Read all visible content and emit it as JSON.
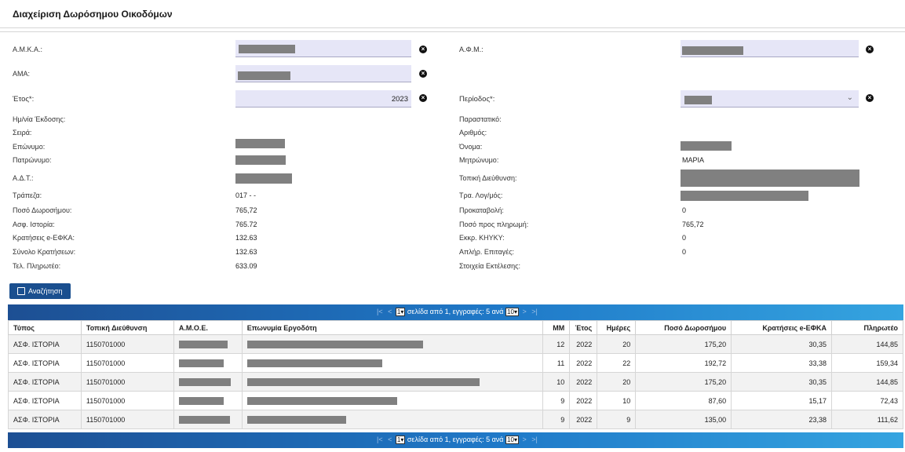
{
  "app": {
    "title": "Διαχείριση Δωρόσημου Οικοδόμων"
  },
  "form": {
    "amka_label": "Α.Μ.Κ.Α.:",
    "afm_label": "Α.Φ.Μ.:",
    "ama_label": "ΑΜΑ:",
    "year_label": "Έτος*:",
    "year_value": "2023",
    "period_label": "Περίοδος*:",
    "clear_icon": "clear-icon",
    "left": [
      {
        "label": "Ημ/νία Έκδοσης:",
        "value": ""
      },
      {
        "label": "Σειρά:",
        "value": ""
      },
      {
        "label": "Επώνυμο:",
        "value": ""
      },
      {
        "label": "Πατρώνυμο:",
        "value": ""
      },
      {
        "label": "Α.Δ.Τ.:",
        "value": ""
      },
      {
        "label": "Τράπεζα:",
        "value": "017 - -"
      },
      {
        "label": "Ποσό Δωροσήμου:",
        "value": "765,72"
      },
      {
        "label": "Ασφ. Ιστορία:",
        "value": "765.72"
      },
      {
        "label": "Κρατήσεις e-ΕΦΚΑ:",
        "value": "132.63"
      },
      {
        "label": "Σύνολο Κρατήσεων:",
        "value": "132.63"
      },
      {
        "label": "Τελ. Πληρωτέο:",
        "value": "633.09"
      }
    ],
    "right": [
      {
        "label": "Παραστατικό:",
        "value": ""
      },
      {
        "label": "Αριθμός:",
        "value": ""
      },
      {
        "label": "Όνομα:",
        "value": ""
      },
      {
        "label": "Μητρώνυμο:",
        "value": "ΜΑΡΙΑ"
      },
      {
        "label": "Τοπική Διεύθυνση:",
        "value": ""
      },
      {
        "label": "Τρα. Λογ/μός:",
        "value": ""
      },
      {
        "label": "Προκαταβολή:",
        "value": "0"
      },
      {
        "label": "Ποσό προς πληρωμή:",
        "value": "765,72"
      },
      {
        "label": "Εκκρ. ΚΗΥΚΥ:",
        "value": "0"
      },
      {
        "label": "Απλήρ. Επιταγές:",
        "value": "0"
      },
      {
        "label": "Στοιχεία Εκτέλεσης:",
        "value": ""
      }
    ]
  },
  "search": {
    "label": "Αναζήτηση",
    "icon": "search-icon"
  },
  "pager": {
    "first": "|<",
    "prev": "<",
    "next": ">",
    "last": ">|",
    "page": "1",
    "text": "σελίδα από 1, εγγραφές: 5 ανά",
    "per_page": "10"
  },
  "table": {
    "headers": [
      "Τύπος",
      "Τοπική Διεύθυνση",
      "Α.Μ.Ο.Ε.",
      "Επωνυμία Εργοδότη",
      "ΜΜ",
      "Έτος",
      "Ημέρες",
      "Ποσό Δωροσήμου",
      "Κρατήσεις e-ΕΦΚΑ",
      "Πληρωτέο"
    ],
    "rows": [
      {
        "type": "ΑΣΦ. ΙΣΤΟΡΙΑ",
        "addr": "1150701000",
        "mm": "12",
        "year": "2022",
        "days": "20",
        "amount": "175,20",
        "ded": "30,35",
        "pay": "144,85"
      },
      {
        "type": "ΑΣΦ. ΙΣΤΟΡΙΑ",
        "addr": "1150701000",
        "mm": "11",
        "year": "2022",
        "days": "22",
        "amount": "192,72",
        "ded": "33,38",
        "pay": "159,34"
      },
      {
        "type": "ΑΣΦ. ΙΣΤΟΡΙΑ",
        "addr": "1150701000",
        "mm": "10",
        "year": "2022",
        "days": "20",
        "amount": "175,20",
        "ded": "30,35",
        "pay": "144,85"
      },
      {
        "type": "ΑΣΦ. ΙΣΤΟΡΙΑ",
        "addr": "1150701000",
        "mm": "9",
        "year": "2022",
        "days": "10",
        "amount": "87,60",
        "ded": "15,17",
        "pay": "72,43"
      },
      {
        "type": "ΑΣΦ. ΙΣΤΟΡΙΑ",
        "addr": "1150701000",
        "mm": "9",
        "year": "2022",
        "days": "9",
        "amount": "135,00",
        "ded": "23,38",
        "pay": "111,62"
      }
    ]
  }
}
